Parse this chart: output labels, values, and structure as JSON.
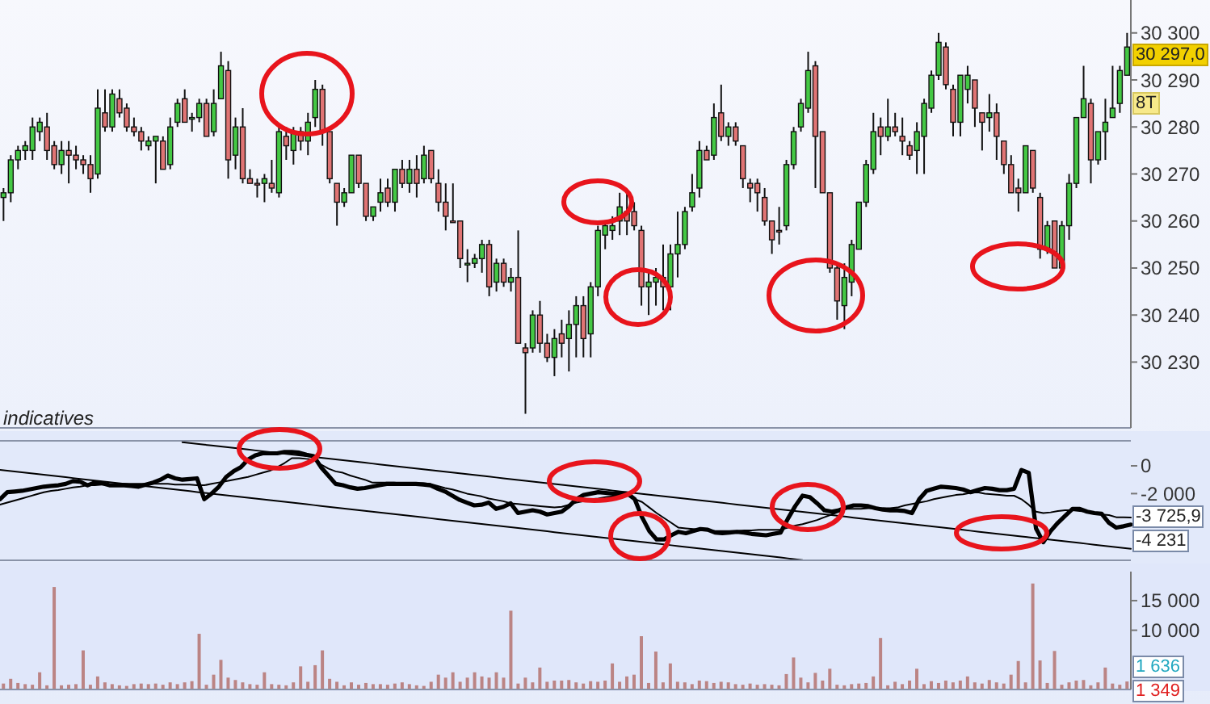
{
  "chart_data": [
    {
      "type": "candlestick",
      "tick_labels": "y",
      "categories": [
        null,
        null,
        null,
        null,
        null,
        null,
        null,
        null,
        null,
        null,
        null,
        null,
        null,
        null,
        null,
        null,
        null,
        null,
        null,
        null,
        null,
        null,
        null,
        null,
        null,
        null,
        null,
        null,
        null,
        null,
        null,
        null,
        null,
        null,
        null,
        null,
        null,
        null,
        null,
        null,
        null,
        null,
        null,
        null,
        null,
        null,
        null,
        null,
        null,
        null,
        null,
        null,
        null,
        null,
        null,
        null,
        null,
        null,
        null,
        null,
        null,
        null,
        null,
        null,
        null,
        null,
        null,
        null,
        null,
        null,
        null,
        null,
        null,
        null,
        null,
        null,
        null,
        null,
        null,
        null,
        null,
        null,
        null,
        null,
        null,
        null,
        null,
        null,
        null,
        null,
        null,
        null,
        null,
        null,
        null,
        null,
        null,
        null,
        null,
        null,
        null,
        null,
        null,
        null,
        null,
        null,
        null,
        null,
        null,
        null,
        null,
        null,
        null,
        null,
        null,
        null,
        null,
        null,
        null,
        null,
        null,
        null,
        null,
        null,
        null,
        null,
        null,
        null,
        null,
        null,
        null,
        null,
        null,
        null,
        null,
        null,
        null,
        null,
        null,
        null,
        null,
        null,
        null,
        null,
        null,
        null,
        null,
        null,
        null,
        null,
        null,
        null,
        null,
        null,
        null,
        null
      ],
      "ohlc": [
        [
          30265,
          30267,
          30260,
          30266
        ],
        [
          30266,
          30274,
          30264,
          30273
        ],
        [
          30273,
          30276,
          30271,
          30275
        ],
        [
          30275,
          30277,
          30273,
          30276
        ],
        [
          30275,
          30282,
          30273,
          30280
        ],
        [
          30279,
          30282,
          30277,
          30281
        ],
        [
          30280,
          30283,
          30273,
          30275
        ],
        [
          30276,
          30277,
          30271,
          30272
        ],
        [
          30272,
          30277,
          30270,
          30275
        ],
        [
          30275,
          30277,
          30268,
          30274
        ],
        [
          30274,
          30276,
          30271,
          30273
        ],
        [
          30273,
          30274,
          30270,
          30272
        ],
        [
          30272,
          30274,
          30266,
          30269
        ],
        [
          30270,
          30288,
          30269,
          30284
        ],
        [
          30283,
          30288,
          30279,
          30280
        ],
        [
          30280,
          30288,
          30279,
          30287
        ],
        [
          30286,
          30288,
          30282,
          30283
        ],
        [
          30284,
          30285,
          30279,
          30280
        ],
        [
          30280,
          30282,
          30278,
          30279
        ],
        [
          30279,
          30280,
          30275,
          30277
        ],
        [
          30276,
          30278,
          30275,
          30277
        ],
        [
          30277,
          30278,
          30268,
          30278
        ],
        [
          30277,
          30278,
          30271,
          30271
        ],
        [
          30272,
          30282,
          30271,
          30280
        ],
        [
          30281,
          30286,
          30280,
          30285
        ],
        [
          30286,
          30288,
          30281,
          30281
        ],
        [
          30282,
          30283,
          30279,
          30282
        ],
        [
          30282,
          30286,
          30281,
          30285
        ],
        [
          30285,
          30286,
          30278,
          30278
        ],
        [
          30279,
          30288,
          30278,
          30285
        ],
        [
          30286,
          30296,
          30286,
          30293
        ],
        [
          30292,
          30294,
          30269,
          30273
        ],
        [
          30274,
          30282,
          30271,
          30280
        ],
        [
          30280,
          30284,
          30268,
          30269
        ],
        [
          30269,
          30271,
          30268,
          30268
        ],
        [
          30268,
          30269,
          30265,
          30268
        ],
        [
          30268,
          30270,
          30264,
          30269
        ],
        [
          30268,
          30273,
          30266,
          30267
        ],
        [
          30266,
          30280,
          30265,
          30279
        ],
        [
          30278,
          30280,
          30273,
          30276
        ],
        [
          30275,
          30280,
          30272,
          30279
        ],
        [
          30279,
          30280,
          30275,
          30277
        ],
        [
          30277,
          30283,
          30274,
          30281
        ],
        [
          30282,
          30290,
          30280,
          30288
        ],
        [
          30288,
          30289,
          30276,
          30279
        ],
        [
          30279,
          30279,
          30268,
          30269
        ],
        [
          30268,
          30268,
          30259,
          30264
        ],
        [
          30264,
          30267,
          30263,
          30266
        ],
        [
          30266,
          30274,
          30266,
          30274
        ],
        [
          30274,
          30274,
          30267,
          30268
        ],
        [
          30268,
          30268,
          30260,
          30261
        ],
        [
          30261,
          30263,
          30260,
          30263
        ],
        [
          30264,
          30269,
          30262,
          30266
        ],
        [
          30267,
          30269,
          30263,
          30264
        ],
        [
          30264,
          30271,
          30262,
          30271
        ],
        [
          30271,
          30273,
          30267,
          30268
        ],
        [
          30268,
          30273,
          30266,
          30271
        ],
        [
          30271,
          30274,
          30265,
          30268
        ],
        [
          30269,
          30276,
          30268,
          30274
        ],
        [
          30275,
          30275,
          30268,
          30269
        ],
        [
          30268,
          30271,
          30262,
          30264
        ],
        [
          30264,
          30268,
          30258,
          30261
        ],
        [
          30260,
          30268,
          30260,
          30260
        ],
        [
          30260,
          30260,
          30250,
          30252
        ],
        [
          30251,
          30254,
          30247,
          30251
        ],
        [
          30251,
          30253,
          30250,
          30252
        ],
        [
          30252,
          30256,
          30249,
          30255
        ],
        [
          30255,
          30256,
          30244,
          30246
        ],
        [
          30247,
          30252,
          30245,
          30251
        ],
        [
          30251,
          30252,
          30246,
          30247
        ],
        [
          30247,
          30250,
          30245,
          30248
        ],
        [
          30248,
          30258,
          30234,
          30234
        ],
        [
          30233,
          30234,
          30219,
          30232
        ],
        [
          30233,
          30241,
          30232,
          30240
        ],
        [
          30240,
          30243,
          30232,
          30234
        ],
        [
          30234,
          30236,
          30230,
          30231
        ],
        [
          30231,
          30237,
          30227,
          30235
        ],
        [
          30236,
          30239,
          30231,
          30234
        ],
        [
          30235,
          30241,
          30228,
          30238
        ],
        [
          30238,
          30244,
          30231,
          30242
        ],
        [
          30242,
          30244,
          30231,
          30235
        ],
        [
          30236,
          30247,
          30231,
          30246
        ],
        [
          30246,
          30259,
          30244,
          30258
        ],
        [
          30257,
          30260,
          30254,
          30259
        ],
        [
          30258,
          30261,
          30256,
          30259
        ],
        [
          30260,
          30266,
          30257,
          30263
        ],
        [
          30262,
          30266,
          30257,
          30260
        ],
        [
          30262,
          30264,
          30258,
          30259
        ],
        [
          30258,
          30259,
          30242,
          30246
        ],
        [
          30246,
          30249,
          30240,
          30247
        ],
        [
          30247,
          30250,
          30242,
          30248
        ],
        [
          30248,
          30255,
          30241,
          30246
        ],
        [
          30246,
          30255,
          30241,
          30253
        ],
        [
          30253,
          30262,
          30248,
          30255
        ],
        [
          30255,
          30263,
          30254,
          30262
        ],
        [
          30263,
          30270,
          30262,
          30266
        ],
        [
          30267,
          30277,
          30265,
          30275
        ],
        [
          30275,
          30276,
          30273,
          30273
        ],
        [
          30274,
          30285,
          30273,
          30282
        ],
        [
          30283,
          30289,
          30277,
          30278
        ],
        [
          30278,
          30281,
          30276,
          30280
        ],
        [
          30280,
          30281,
          30276,
          30277
        ],
        [
          30276,
          30276,
          30267,
          30269
        ],
        [
          30268,
          30269,
          30264,
          30267
        ],
        [
          30268,
          30269,
          30262,
          30266
        ],
        [
          30265,
          30267,
          30259,
          30260
        ],
        [
          30260,
          30260,
          30253,
          30256
        ],
        [
          30258,
          30263,
          30255,
          30258
        ],
        [
          30259,
          30273,
          30258,
          30272
        ],
        [
          30272,
          30280,
          30271,
          30279
        ],
        [
          30280,
          30286,
          30279,
          30285
        ],
        [
          30284,
          30296,
          30283,
          30292
        ],
        [
          30293,
          30294,
          30267,
          30278
        ],
        [
          30279,
          30279,
          30266,
          30266
        ],
        [
          30266,
          30266,
          30249,
          30250
        ],
        [
          30250,
          30251,
          30239,
          30243
        ],
        [
          30242,
          30251,
          30237,
          30248
        ],
        [
          30247,
          30256,
          30244,
          30255
        ],
        [
          30254,
          30264,
          30254,
          30264
        ],
        [
          30264,
          30273,
          30263,
          30272
        ],
        [
          30271,
          30283,
          30270,
          30279
        ],
        [
          30280,
          30282,
          30274,
          30278
        ],
        [
          30278,
          30286,
          30277,
          30280
        ],
        [
          30280,
          30283,
          30278,
          30279
        ],
        [
          30278,
          30282,
          30274,
          30277
        ],
        [
          30276,
          30277,
          30273,
          30274
        ],
        [
          30275,
          30281,
          30270,
          30279
        ],
        [
          30278,
          30286,
          30270,
          30285
        ],
        [
          30284,
          30292,
          30283,
          30291
        ],
        [
          30291,
          30300,
          30290,
          30298
        ],
        [
          30297,
          30298,
          30288,
          30289
        ],
        [
          30288,
          30289,
          30278,
          30281
        ],
        [
          30281,
          30291,
          30278,
          30291
        ],
        [
          30288,
          30293,
          30285,
          30291
        ],
        [
          30290,
          30290,
          30280,
          30284
        ],
        [
          30283,
          30283,
          30275,
          30281
        ],
        [
          30282,
          30287,
          30279,
          30283
        ],
        [
          30283,
          30285,
          30273,
          30278
        ],
        [
          30277,
          30277,
          30270,
          30272
        ],
        [
          30272,
          30274,
          30266,
          30266
        ],
        [
          30267,
          30269,
          30262,
          30266
        ],
        [
          30266,
          30276,
          30266,
          30276
        ],
        [
          30275,
          30275,
          30266,
          30267
        ],
        [
          30265,
          30266,
          30252,
          30254
        ],
        [
          30254,
          30260,
          30253,
          30259
        ],
        [
          30260,
          30260,
          30250,
          30250
        ],
        [
          30250,
          30260,
          30250,
          30259
        ],
        [
          30259,
          30270,
          30256,
          30268
        ],
        [
          30268,
          30282,
          30267,
          30282
        ],
        [
          30282,
          30293,
          30282,
          30286
        ],
        [
          30285,
          30286,
          30268,
          30273
        ],
        [
          30273,
          30279,
          30272,
          30279
        ],
        [
          30279,
          30286,
          30273,
          30281
        ],
        [
          30282,
          30293,
          30282,
          30284
        ],
        [
          30285,
          30293,
          30283,
          30292
        ],
        [
          30291,
          30300,
          30291,
          30297
        ]
      ],
      "colors": [
        "#44c844",
        "#44c844",
        "#44c844",
        "#44c844",
        "#44c844",
        "#44c844",
        "#e07474",
        "#e07474",
        "#44c844",
        "#e07474",
        "#e07474",
        "#e07474",
        "#e07474",
        "#44c844",
        "#e07474",
        "#44c844",
        "#e07474",
        "#e07474",
        "#e07474",
        "#e07474",
        "#44c844",
        "#44c844",
        "#e07474",
        "#44c844",
        "#44c844",
        "#e07474",
        "#44c844",
        "#44c844",
        "#e07474",
        "#44c844",
        "#44c844",
        "#e07474",
        "#44c844",
        "#e07474",
        "#e07474",
        "#e07474",
        "#44c844",
        "#e07474",
        "#44c844",
        "#e07474",
        "#44c844",
        "#e07474",
        "#44c844",
        "#44c844",
        "#e07474",
        "#e07474",
        "#e07474",
        "#44c844",
        "#44c844",
        "#e07474",
        "#e07474",
        "#44c844",
        "#44c844",
        "#e07474",
        "#44c844",
        "#e07474",
        "#44c844",
        "#e07474",
        "#44c844",
        "#e07474",
        "#e07474",
        "#e07474",
        "#e07474",
        "#e07474",
        "#44c844",
        "#44c844",
        "#44c844",
        "#e07474",
        "#44c844",
        "#e07474",
        "#44c844",
        "#e07474",
        "#e07474",
        "#44c844",
        "#e07474",
        "#e07474",
        "#44c844",
        "#e07474",
        "#44c844",
        "#44c844",
        "#e07474",
        "#44c844",
        "#44c844",
        "#44c844",
        "#44c844",
        "#44c844",
        "#e07474",
        "#e07474",
        "#e07474",
        "#44c844",
        "#44c844",
        "#e07474",
        "#44c844",
        "#44c844",
        "#44c844",
        "#44c844",
        "#44c844",
        "#e07474",
        "#44c844",
        "#e07474",
        "#44c844",
        "#e07474",
        "#e07474",
        "#e07474",
        "#e07474",
        "#e07474",
        "#e07474",
        "#e07474",
        "#44c844",
        "#44c844",
        "#44c844",
        "#44c844",
        "#e07474",
        "#e07474",
        "#e07474",
        "#e07474",
        "#44c844",
        "#44c844",
        "#44c844",
        "#44c844",
        "#44c844",
        "#e07474",
        "#44c844",
        "#e07474",
        "#e07474",
        "#e07474",
        "#44c844",
        "#44c844",
        "#44c844",
        "#44c844",
        "#e07474",
        "#e07474",
        "#44c844",
        "#44c844",
        "#e07474",
        "#e07474",
        "#44c844",
        "#e07474",
        "#e07474",
        "#e07474",
        "#e07474",
        "#44c844",
        "#e07474",
        "#e07474",
        "#44c844",
        "#e07474",
        "#44c844",
        "#44c844",
        "#44c844",
        "#44c844",
        "#e07474",
        "#44c844",
        "#44c844",
        "#44c844",
        "#44c844",
        "#44c844"
      ],
      "ylim": [
        30216,
        30307
      ],
      "yticks": [
        {
          "value": 30230,
          "label": "30 230"
        },
        {
          "value": 30240,
          "label": "30 240"
        },
        {
          "value": 30250,
          "label": "30 250"
        },
        {
          "value": 30260,
          "label": "30 260"
        },
        {
          "value": 30270,
          "label": "30 270"
        },
        {
          "value": 30280,
          "label": "30 280"
        },
        {
          "value": 30290,
          "label": "30 290"
        },
        {
          "value": 30300,
          "label": "30 300"
        }
      ],
      "annotations": [
        "30 297,0",
        "8T"
      ]
    },
    {
      "type": "line",
      "tick_labels": "y",
      "ylim": [
        -6800,
        1800
      ],
      "categories": [
        null,
        null,
        null,
        null,
        null,
        null,
        null,
        null,
        null,
        null,
        null,
        null,
        null,
        null,
        null,
        null,
        null,
        null,
        null,
        null,
        null,
        null,
        null,
        null,
        null,
        null,
        null,
        null,
        null,
        null,
        null,
        null,
        null,
        null,
        null,
        null,
        null,
        null,
        null,
        null,
        null,
        null,
        null,
        null,
        null,
        null,
        null,
        null,
        null,
        null,
        null,
        null,
        null,
        null,
        null,
        null,
        null,
        null,
        null,
        null,
        null,
        null,
        null,
        null,
        null,
        null,
        null,
        null,
        null,
        null,
        null,
        null,
        null,
        null,
        null,
        null,
        null,
        null,
        null,
        null,
        null,
        null,
        null,
        null,
        null,
        null,
        null,
        null,
        null,
        null,
        null,
        null,
        null,
        null,
        null,
        null,
        null,
        null,
        null,
        null,
        null,
        null,
        null,
        null,
        null,
        null,
        null,
        null,
        null,
        null,
        null,
        null,
        null,
        null,
        null,
        null,
        null,
        null,
        null,
        null,
        null,
        null,
        null,
        null,
        null,
        null,
        null,
        null,
        null,
        null,
        null,
        null,
        null,
        null,
        null,
        null,
        null,
        null,
        null,
        null,
        null,
        null,
        null,
        null,
        null,
        null,
        null,
        null,
        null,
        null,
        null,
        null,
        null,
        null,
        null,
        null
      ],
      "yticks": [
        0,
        {
          "value": -2000,
          "label": "-2 000"
        }
      ],
      "series": [
        {
          "color": "#000000",
          "values": [
            -2400,
            -1900,
            -1850,
            -1800,
            -1700,
            -1600,
            -1500,
            -1450,
            -1400,
            -1300,
            -1100,
            -1150,
            -1400,
            -1200,
            -1250,
            -1400,
            -1400,
            -1400,
            -1450,
            -1500,
            -1350,
            -1200,
            -1000,
            -700,
            -900,
            -1000,
            -950,
            -900,
            -2400,
            -2000,
            -1500,
            -800,
            -400,
            -100,
            450,
            750,
            900,
            900,
            900,
            1000,
            1000,
            950,
            800,
            700,
            -100,
            -700,
            -1300,
            -1400,
            -1550,
            -1650,
            -1600,
            -1500,
            -1400,
            -1300,
            -1300,
            -1300,
            -1300,
            -1300,
            -1350,
            -1400,
            -1650,
            -1850,
            -2150,
            -2450,
            -2650,
            -2850,
            -2800,
            -2650,
            -3100,
            -2950,
            -2700,
            -3400,
            -3300,
            -3200,
            -3300,
            -3500,
            -3400,
            -3300,
            -2900,
            -2400,
            -2100,
            -2000,
            -1900,
            -1950,
            -2000,
            -2000,
            -2000,
            -2400,
            -3700,
            -4700,
            -5300,
            -5300,
            -5000,
            -4750,
            -4850,
            -4700,
            -4550,
            -4600,
            -4800,
            -4850,
            -4800,
            -4750,
            -4800,
            -4900,
            -4950,
            -5000,
            -4900,
            -4800,
            -3800,
            -2900,
            -2150,
            -2250,
            -2700,
            -3200,
            -3300,
            -3200,
            -3000,
            -2850,
            -2850,
            -2900,
            -3050,
            -3150,
            -3200,
            -3200,
            -3250,
            -3400,
            -2400,
            -1800,
            -1650,
            -1500,
            -1550,
            -1600,
            -1700,
            -1900,
            -1750,
            -1600,
            -1650,
            -1750,
            -1750,
            -1650,
            -300,
            -500,
            -4500,
            -5500,
            -4700,
            -4100,
            -3600,
            -3100,
            -3100,
            -3300,
            -3400,
            -3450,
            -4100,
            -4450,
            -4350,
            -4231
          ]
        },
        {
          "color": "#000000",
          "values": [
            -2800,
            -2650,
            -2500,
            -2350,
            -2200,
            -2050,
            -1900,
            -1800,
            -1750,
            -1650,
            -1550,
            -1500,
            -1400,
            -1400,
            -1350,
            -1350,
            -1350,
            -1300,
            -1300,
            -1300,
            -1300,
            -1300,
            -1300,
            -1300,
            -1350,
            -1350,
            -1350,
            -1400,
            -1400,
            -1300,
            -1200,
            -1100,
            -1000,
            -900,
            -800,
            -650,
            -500,
            -350,
            -100,
            200,
            550,
            550,
            500,
            450,
            100,
            -200,
            -400,
            -500,
            -700,
            -850,
            -1000,
            -1200,
            -1200,
            -1200,
            -1200,
            -1250,
            -1250,
            -1250,
            -1250,
            -1300,
            -1450,
            -1600,
            -1700,
            -1850,
            -2000,
            -2100,
            -2200,
            -2350,
            -2450,
            -2550,
            -2700,
            -2750,
            -2800,
            -2850,
            -2900,
            -2950,
            -3000,
            -2950,
            -2800,
            -2650,
            -2550,
            -2400,
            -2350,
            -2250,
            -2200,
            -2100,
            -2050,
            -2400,
            -2600,
            -3000,
            -3400,
            -3750,
            -4100,
            -4450,
            -4500,
            -4550,
            -4600,
            -4650,
            -4700,
            -4700,
            -4700,
            -4700,
            -4650,
            -4650,
            -4600,
            -4600,
            -4600,
            -4600,
            -4450,
            -4300,
            -4200,
            -4050,
            -3900,
            -3700,
            -3500,
            -3300,
            -3100,
            -3100,
            -3100,
            -3050,
            -3050,
            -3050,
            -3050,
            -3000,
            -2850,
            -2750,
            -2650,
            -2550,
            -2400,
            -2300,
            -2200,
            -2100,
            -2050,
            -1950,
            -1900,
            -2000,
            -2050,
            -2100,
            -2150,
            -2150,
            -2400,
            -2800,
            -3300,
            -3400,
            -3350,
            -3250,
            -3200,
            -3200,
            -3250,
            -3300,
            -3400,
            -3500,
            -3550,
            -3700,
            -3700,
            -3725.9
          ]
        },
        {
          "color": "#000000",
          "values": [
            null,
            null,
            null,
            null,
            null,
            null,
            null,
            null,
            null,
            null,
            null,
            null,
            null,
            null,
            null,
            null,
            null,
            null,
            null,
            null,
            null,
            null,
            null,
            null,
            null,
            1700,
            1641,
            1582,
            1523,
            1464,
            1405,
            1346,
            1287,
            1228,
            1169,
            1110,
            1051,
            992,
            933,
            874,
            815,
            756,
            697,
            638,
            579,
            520,
            461,
            402,
            343,
            284,
            225,
            166,
            107,
            48,
            -11,
            -70,
            -129,
            -188,
            -247,
            -306,
            -365,
            -424,
            -483,
            -542,
            -601,
            -660,
            -719,
            -778,
            -837,
            -896,
            -955,
            -1014,
            -1073,
            -1132,
            -1191,
            -1250,
            -1309,
            -1368,
            -1427,
            -1486,
            -1545,
            -1604,
            -1663,
            -1722,
            -1781,
            -1840,
            -1899,
            -1958,
            -2017,
            -2076,
            -2135,
            -2194,
            -2253,
            -2312,
            -2371,
            -2430,
            -2489,
            -2548,
            -2607,
            -2666,
            -2725,
            -2784,
            -2843,
            -2902,
            -2961,
            -3020,
            -3079,
            -3138,
            -3197,
            -3256,
            -3315,
            -3374,
            -3433,
            -3492,
            -3551,
            -3610,
            -3669,
            -3728,
            -3787,
            -3846,
            -3905,
            -3964,
            -4023,
            -4082,
            -4141,
            -4200,
            -4259,
            -4318,
            -4377,
            -4436,
            -4495,
            -4554,
            -4613,
            -4672,
            -4731,
            -4790,
            -4849,
            -4908,
            -4967,
            -5026,
            -5085,
            -5144,
            -5203,
            -5262,
            -5321,
            -5380,
            -5439,
            -5498,
            -5557,
            -5616,
            -5675,
            -5734,
            -5793,
            -5852,
            -5911,
            -5970
          ]
        },
        {
          "color": "#000000",
          "values": [
            -290,
            -349,
            -408,
            -467,
            -526,
            -585,
            -644,
            -703,
            -762,
            -821,
            -880,
            -939,
            -998,
            -1057,
            -1116,
            -1175,
            -1234,
            -1293,
            -1352,
            -1411,
            -1470,
            -1529,
            -1588,
            -1647,
            -1706,
            -1765,
            -1824,
            -1883,
            -1942,
            -2001,
            -2060,
            -2119,
            -2178,
            -2237,
            -2296,
            -2355,
            -2414,
            -2473,
            -2532,
            -2591,
            -2650,
            -2709,
            -2768,
            -2827,
            -2886,
            -2945,
            -3004,
            -3063,
            -3122,
            -3181,
            -3240,
            -3299,
            -3358,
            -3417,
            -3476,
            -3535,
            -3594,
            -3653,
            -3712,
            -3771,
            -3830,
            -3889,
            -3948,
            -4007,
            -4066,
            -4125,
            -4184,
            -4243,
            -4302,
            -4361,
            -4420,
            -4479,
            -4538,
            -4597,
            -4656,
            -4715,
            -4774,
            -4833,
            -4892,
            -4951,
            -5010,
            -5069,
            -5128,
            -5187,
            -5246,
            -5305,
            -5364,
            -5423,
            -5482,
            -5541,
            -5600,
            -5659,
            -5718,
            -5777,
            -5836,
            -5895,
            -5954,
            -6013,
            -6072,
            -6131,
            -6190,
            -6249,
            -6308,
            -6367,
            -6426,
            -6485,
            -6544,
            -6603,
            -6662,
            -6721,
            -6780,
            null,
            null,
            null,
            null,
            null,
            null,
            null,
            null,
            null,
            null,
            null,
            null,
            null,
            null,
            null,
            null,
            null,
            null,
            null,
            null,
            null,
            null,
            null,
            null,
            null,
            null,
            null,
            null,
            null,
            null,
            null,
            null,
            null,
            null,
            null,
            null,
            null,
            null,
            null,
            null,
            null,
            null,
            null,
            null,
            null
          ]
        }
      ],
      "annotations": [
        "indicatives",
        "-3 725,9",
        "-4 231"
      ]
    },
    {
      "type": "bar",
      "tick_labels": "y",
      "categories": [
        null,
        null,
        null,
        null,
        null,
        null,
        null,
        null,
        null,
        null,
        null,
        null,
        null,
        null,
        null,
        null,
        null,
        null,
        null,
        null,
        null,
        null,
        null,
        null,
        null,
        null,
        null,
        null,
        null,
        null,
        null,
        null,
        null,
        null,
        null,
        null,
        null,
        null,
        null,
        null,
        null,
        null,
        null,
        null,
        null,
        null,
        null,
        null,
        null,
        null,
        null,
        null,
        null,
        null,
        null,
        null,
        null,
        null,
        null,
        null,
        null,
        null,
        null,
        null,
        null,
        null,
        null,
        null,
        null,
        null,
        null,
        null,
        null,
        null,
        null,
        null,
        null,
        null,
        null,
        null,
        null,
        null,
        null,
        null,
        null,
        null,
        null,
        null,
        null,
        null,
        null,
        null,
        null,
        null,
        null,
        null,
        null,
        null,
        null,
        null,
        null,
        null,
        null,
        null,
        null,
        null,
        null,
        null,
        null,
        null,
        null,
        null,
        null,
        null,
        null,
        null,
        null,
        null,
        null,
        null,
        null,
        null,
        null,
        null,
        null,
        null,
        null,
        null,
        null,
        null,
        null,
        null,
        null,
        null,
        null,
        null,
        null,
        null,
        null,
        null,
        null,
        null,
        null,
        null,
        null,
        null,
        null,
        null,
        null,
        null,
        null,
        null,
        null,
        null,
        null,
        null
      ],
      "values": [
        1000,
        1800,
        1100,
        900,
        800,
        2900,
        700,
        17300,
        700,
        800,
        900,
        6600,
        800,
        2200,
        1200,
        900,
        700,
        600,
        900,
        1000,
        900,
        1000,
        800,
        1200,
        900,
        1200,
        1400,
        9400,
        800,
        2500,
        5000,
        2000,
        1600,
        1200,
        900,
        800,
        2900,
        900,
        800,
        700,
        1200,
        3900,
        1300,
        4100,
        6600,
        1800,
        1300,
        700,
        1200,
        800,
        1100,
        900,
        900,
        800,
        1000,
        1200,
        900,
        700,
        600,
        1300,
        2500,
        2000,
        2900,
        1300,
        2000,
        2900,
        2200,
        2000,
        2900,
        2000,
        13300,
        1000,
        2000,
        1200,
        3700,
        1300,
        1500,
        1500,
        1600,
        1200,
        1000,
        1400,
        1300,
        1500,
        4400,
        1300,
        2200,
        2500,
        9000,
        1100,
        6400,
        1200,
        4400,
        1300,
        1200,
        900,
        1500,
        1400,
        1100,
        1300,
        1200,
        900,
        800,
        1000,
        800,
        900,
        800,
        700,
        2600,
        5400,
        2000,
        1200,
        2800,
        1500,
        3500,
        800,
        700,
        900,
        1000,
        1100,
        2200,
        8700,
        700,
        1300,
        900,
        1500,
        3500,
        900,
        1400,
        1100,
        1500,
        1200,
        1500,
        2200,
        1200,
        1000,
        1600,
        1200,
        1000,
        2500,
        4800,
        1200,
        17900,
        4900,
        1100,
        6500,
        800,
        1200,
        1500,
        1600,
        700,
        1200,
        3700,
        1000,
        800,
        1349
      ],
      "color": "#bb8484",
      "ylim": [
        0,
        19900
      ],
      "yticks": [
        {
          "value": 10000,
          "label": "10 000"
        },
        {
          "value": 15000,
          "label": "15 000"
        }
      ],
      "annotations": [
        "1 636",
        "1 349"
      ]
    }
  ]
}
